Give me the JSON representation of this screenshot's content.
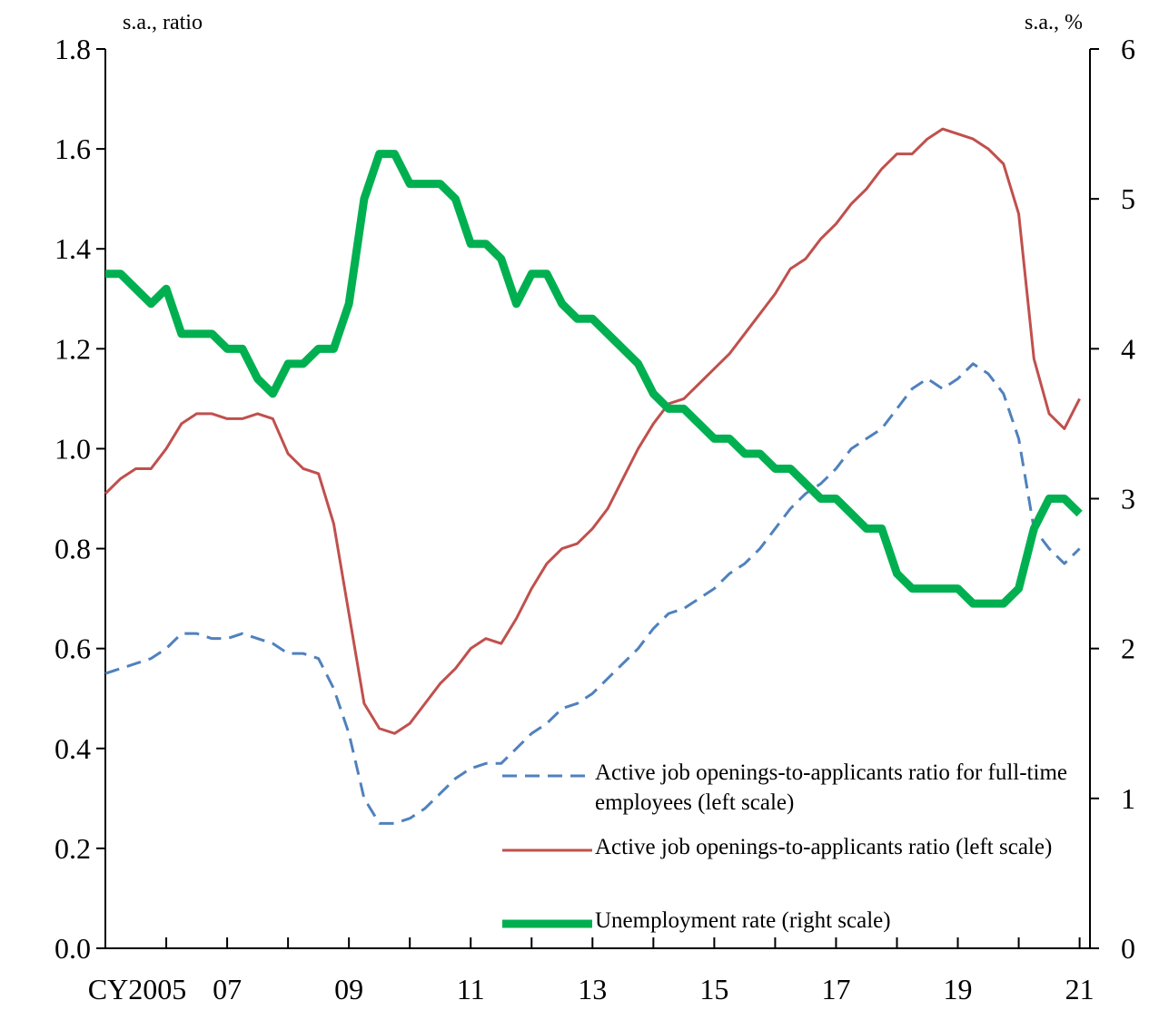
{
  "chart_data": {
    "type": "line",
    "y_label": "s.a., ratio",
    "y2_label": "s.a., %",
    "xlim": [
      2005,
      2021.17
    ],
    "xticks": [
      {
        "value": 2005,
        "label": "CY2005"
      },
      {
        "value": 2007,
        "label": "07"
      },
      {
        "value": 2009,
        "label": "09"
      },
      {
        "value": 2011,
        "label": "11"
      },
      {
        "value": 2013,
        "label": "13"
      },
      {
        "value": 2015,
        "label": "15"
      },
      {
        "value": 2017,
        "label": "17"
      },
      {
        "value": 2019,
        "label": "19"
      },
      {
        "value": 2021,
        "label": "21"
      }
    ],
    "x_minor_ticks": [
      2006,
      2008,
      2010,
      2012,
      2014,
      2016,
      2018,
      2020
    ],
    "ylim": [
      0,
      1.8
    ],
    "yticks": [
      {
        "value": 0,
        "label": "0.0"
      },
      0.2,
      0.4,
      0.6,
      0.8,
      {
        "value": 1,
        "label": "1.0"
      },
      1.2,
      1.4,
      1.6,
      1.8
    ],
    "y2lim": [
      0,
      6
    ],
    "y2ticks": [
      0,
      1,
      2,
      3,
      4,
      5,
      6
    ],
    "x": [
      2005,
      2005.25,
      2005.5,
      2005.75,
      2006,
      2006.25,
      2006.5,
      2006.75,
      2007,
      2007.25,
      2007.5,
      2007.75,
      2008,
      2008.25,
      2008.5,
      2008.75,
      2009,
      2009.25,
      2009.5,
      2009.75,
      2010,
      2010.25,
      2010.5,
      2010.75,
      2011,
      2011.25,
      2011.5,
      2011.75,
      2012,
      2012.25,
      2012.5,
      2012.75,
      2013,
      2013.25,
      2013.5,
      2013.75,
      2014,
      2014.25,
      2014.5,
      2014.75,
      2015,
      2015.25,
      2015.5,
      2015.75,
      2016,
      2016.25,
      2016.5,
      2016.75,
      2017,
      2017.25,
      2017.5,
      2017.75,
      2018,
      2018.25,
      2018.5,
      2018.75,
      2019,
      2019.25,
      2019.5,
      2019.75,
      2020,
      2020.25,
      2020.5,
      2020.75,
      2021
    ],
    "series": [
      {
        "name": "Active job openings-to-applicants ratio for full-time employees (left scale)",
        "color": "#4f81bd",
        "dash": true,
        "width": 3,
        "axis": "y",
        "values": [
          0.55,
          0.56,
          0.57,
          0.58,
          0.6,
          0.63,
          0.63,
          0.62,
          0.62,
          0.63,
          0.62,
          0.61,
          0.59,
          0.59,
          0.58,
          0.52,
          0.43,
          0.3,
          0.25,
          0.25,
          0.26,
          0.28,
          0.31,
          0.34,
          0.36,
          0.37,
          0.37,
          0.4,
          0.43,
          0.45,
          0.48,
          0.49,
          0.51,
          0.54,
          0.57,
          0.6,
          0.64,
          0.67,
          0.68,
          0.7,
          0.72,
          0.75,
          0.77,
          0.8,
          0.84,
          0.88,
          0.91,
          0.93,
          0.96,
          1.0,
          1.02,
          1.04,
          1.08,
          1.12,
          1.14,
          1.12,
          1.14,
          1.17,
          1.15,
          1.11,
          1.02,
          0.84,
          0.8,
          0.77,
          0.8
        ]
      },
      {
        "name": "Active job openings-to-applicants ratio (left scale)",
        "color": "#c0504d",
        "dash": false,
        "width": 3,
        "axis": "y",
        "values": [
          0.91,
          0.94,
          0.96,
          0.96,
          1.0,
          1.05,
          1.07,
          1.07,
          1.06,
          1.06,
          1.07,
          1.06,
          0.99,
          0.96,
          0.95,
          0.85,
          0.67,
          0.49,
          0.44,
          0.43,
          0.45,
          0.49,
          0.53,
          0.56,
          0.6,
          0.62,
          0.61,
          0.66,
          0.72,
          0.77,
          0.8,
          0.81,
          0.84,
          0.88,
          0.94,
          1.0,
          1.05,
          1.09,
          1.1,
          1.13,
          1.16,
          1.19,
          1.23,
          1.27,
          1.31,
          1.36,
          1.38,
          1.42,
          1.45,
          1.49,
          1.52,
          1.56,
          1.59,
          1.59,
          1.62,
          1.64,
          1.63,
          1.62,
          1.6,
          1.57,
          1.47,
          1.18,
          1.07,
          1.04,
          1.1
        ]
      },
      {
        "name": "Unemployment rate (right scale)",
        "color": "#00b050",
        "dash": false,
        "width": 9,
        "axis": "y2",
        "values": [
          4.5,
          4.5,
          4.4,
          4.3,
          4.4,
          4.1,
          4.1,
          4.1,
          4.0,
          4.0,
          3.8,
          3.7,
          3.9,
          3.9,
          4.0,
          4.0,
          4.3,
          5.0,
          5.3,
          5.3,
          5.1,
          5.1,
          5.1,
          5.0,
          4.7,
          4.7,
          4.6,
          4.3,
          4.5,
          4.5,
          4.3,
          4.2,
          4.2,
          4.1,
          4.0,
          3.9,
          3.7,
          3.6,
          3.6,
          3.5,
          3.4,
          3.4,
          3.3,
          3.3,
          3.2,
          3.2,
          3.1,
          3.0,
          3.0,
          2.9,
          2.8,
          2.8,
          2.5,
          2.4,
          2.4,
          2.4,
          2.4,
          2.3,
          2.3,
          2.3,
          2.4,
          2.8,
          3.0,
          3.0,
          2.9
        ]
      }
    ]
  }
}
